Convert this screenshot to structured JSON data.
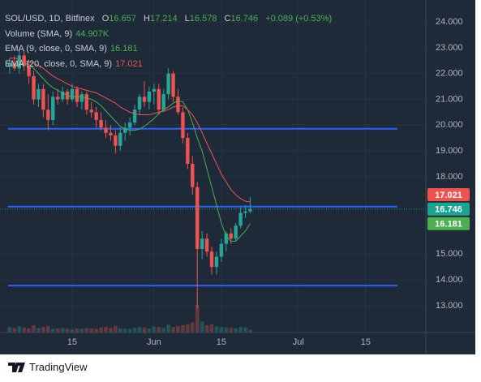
{
  "header": {
    "letters": [
      "O",
      "H",
      "L",
      "C"
    ],
    "change": "+0.089 (+0.53%)",
    "volume_value": "44.907K",
    "brand": "TradingView"
  },
  "chart_data": {
    "type": "candlestick",
    "title": "SOL/USD, 1D, Bitfinex",
    "x": [
      2,
      3,
      4,
      5,
      6,
      7,
      8,
      9,
      10,
      11,
      12,
      13,
      14,
      15,
      16,
      17,
      18,
      19,
      20,
      21,
      22,
      23,
      24,
      25,
      26,
      27,
      28,
      29,
      30,
      31,
      32,
      33,
      34,
      35,
      36,
      37,
      38,
      39,
      40,
      41,
      42,
      43,
      44,
      45,
      46,
      47,
      48,
      49,
      50,
      51,
      52
    ],
    "open": [
      22.3,
      22.4,
      22.2,
      22.7,
      22.3,
      21.9,
      21.0,
      21.4,
      20.6,
      20.2,
      21.1,
      21.0,
      21.3,
      21.0,
      21.4,
      20.9,
      21.2,
      20.6,
      20.5,
      20.2,
      19.9,
      19.7,
      19.6,
      19.2,
      19.7,
      19.9,
      20.1,
      20.6,
      21.1,
      20.9,
      21.3,
      21.4,
      20.6,
      21.2,
      22.0,
      21.1,
      20.5,
      19.5,
      18.5,
      17.6,
      15.2,
      15.6,
      15.1,
      14.5,
      14.9,
      15.4,
      15.8,
      15.6,
      16.1,
      16.6,
      16.657
    ],
    "high": [
      22.6,
      22.7,
      22.9,
      22.9,
      22.5,
      22.1,
      21.6,
      21.6,
      21.2,
      21.3,
      21.4,
      21.5,
      21.4,
      21.6,
      21.5,
      21.3,
      21.3,
      20.9,
      20.7,
      20.5,
      20.2,
      20.0,
      19.8,
      19.9,
      20.1,
      20.3,
      20.8,
      21.2,
      21.7,
      21.5,
      21.6,
      21.6,
      21.4,
      22.2,
      22.1,
      21.4,
      20.7,
      19.7,
      18.8,
      17.8,
      15.9,
      15.8,
      15.3,
      15.1,
      15.6,
      15.9,
      16.0,
      16.2,
      16.8,
      16.9,
      17.214
    ],
    "low": [
      22.0,
      22.1,
      22.0,
      22.1,
      21.6,
      20.8,
      20.7,
      20.3,
      19.8,
      20.0,
      20.8,
      20.9,
      20.8,
      20.9,
      20.7,
      20.6,
      20.4,
      20.3,
      19.9,
      19.8,
      19.5,
      19.4,
      18.9,
      19.0,
      19.4,
      19.6,
      20.0,
      20.4,
      20.7,
      20.6,
      20.8,
      20.4,
      20.5,
      21.0,
      20.9,
      20.4,
      19.3,
      18.3,
      17.3,
      12.9,
      14.8,
      14.9,
      14.2,
      14.2,
      14.7,
      15.1,
      15.4,
      15.5,
      16.0,
      16.4,
      16.578
    ],
    "close": [
      22.4,
      22.2,
      22.7,
      22.3,
      21.9,
      21.0,
      21.4,
      20.6,
      20.2,
      21.1,
      21.0,
      21.3,
      21.0,
      21.4,
      20.9,
      21.2,
      20.6,
      20.5,
      20.2,
      19.9,
      19.7,
      19.6,
      19.2,
      19.7,
      19.9,
      20.1,
      20.6,
      21.1,
      20.9,
      21.3,
      21.4,
      20.6,
      21.2,
      22.0,
      21.1,
      20.5,
      19.5,
      18.5,
      17.6,
      15.2,
      15.6,
      15.1,
      14.5,
      14.9,
      15.4,
      15.8,
      15.6,
      16.1,
      16.6,
      16.657,
      16.746
    ],
    "up_color": "#26a69a",
    "down_color": "#ef5350",
    "price_color": "#1aa38f",
    "series": [
      {
        "name": "EMA (9, close, 0, SMA, 9)",
        "color": "#4caf50",
        "values": [
          22.3,
          22.3,
          22.35,
          22.4,
          22.35,
          22.2,
          22.0,
          21.8,
          21.6,
          21.45,
          21.35,
          21.25,
          21.15,
          21.1,
          21.1,
          21.1,
          21.05,
          21.0,
          20.9,
          20.75,
          20.55,
          20.35,
          20.15,
          19.95,
          19.85,
          19.8,
          19.8,
          19.85,
          19.95,
          20.1,
          20.25,
          20.45,
          20.6,
          20.7,
          20.85,
          20.95,
          20.9,
          20.6,
          20.1,
          19.5,
          19.0,
          18.3,
          17.6,
          16.9,
          16.2,
          15.7,
          15.5,
          15.5,
          15.7,
          15.9,
          16.181
        ]
      },
      {
        "name": "EMA (20, close, 0, SMA, 9)",
        "color": "#ef5350",
        "values": [
          22.6,
          22.6,
          22.55,
          22.5,
          22.45,
          22.4,
          22.3,
          22.2,
          22.05,
          21.9,
          21.8,
          21.7,
          21.6,
          21.5,
          21.45,
          21.4,
          21.35,
          21.3,
          21.25,
          21.15,
          21.05,
          20.95,
          20.85,
          20.7,
          20.6,
          20.5,
          20.45,
          20.4,
          20.4,
          20.4,
          20.45,
          20.5,
          20.55,
          20.6,
          20.7,
          20.75,
          20.75,
          20.6,
          20.4,
          20.1,
          19.7,
          19.3,
          18.9,
          18.5,
          18.1,
          17.8,
          17.5,
          17.3,
          17.15,
          17.05,
          17.021
        ]
      }
    ],
    "volume": {
      "name": "Volume (SMA, 9)",
      "vlim": [
        0,
        400000
      ],
      "values": [
        60000,
        50000,
        70000,
        55000,
        45000,
        80000,
        50000,
        60000,
        70000,
        40000,
        45000,
        50000,
        40000,
        35000,
        45000,
        40000,
        50000,
        45000,
        40000,
        55000,
        60000,
        50000,
        75000,
        45000,
        40000,
        40000,
        50000,
        60000,
        55000,
        45000,
        65000,
        60000,
        50000,
        85000,
        60000,
        70000,
        80000,
        90000,
        110000,
        300000,
        120000,
        80000,
        90000,
        70000,
        60000,
        55000,
        50000,
        45000,
        60000,
        55000,
        30000
      ]
    },
    "levels": [
      19.86,
      16.84,
      13.78
    ],
    "level_color": "#2962ff",
    "xlim": [
      0,
      88.5
    ],
    "xticks": [
      15,
      {
        "value": 32,
        "label": "Jun"
      },
      {
        "value": 46,
        "label": "15"
      },
      {
        "value": 62,
        "label": "Jul"
      },
      {
        "value": 76,
        "label": "15"
      }
    ],
    "ylim": [
      11.96,
      24.85
    ],
    "yticks": [
      {
        "value": 13,
        "label": "13.000"
      },
      {
        "value": 14,
        "label": "14.000"
      },
      {
        "value": 15,
        "label": "15.000"
      },
      {
        "value": 18,
        "label": "18.000"
      },
      {
        "value": 19,
        "label": "19.000"
      },
      {
        "value": 20,
        "label": "20.000"
      },
      {
        "value": 21,
        "label": "21.000"
      },
      {
        "value": 22,
        "label": "22.000"
      },
      {
        "value": 23,
        "label": "23.000"
      },
      {
        "value": 24,
        "label": "24.000"
      }
    ],
    "grid": true
  }
}
